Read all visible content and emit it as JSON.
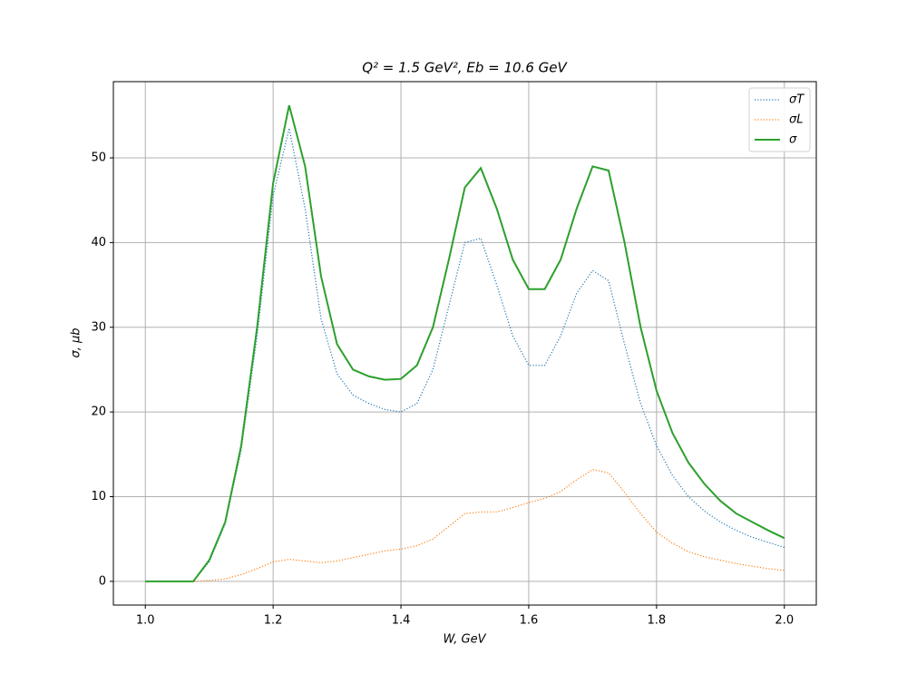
{
  "chart_data": {
    "type": "line",
    "title": "Q² = 1.5 GeV²,  Eb = 10.6 GeV",
    "x_label": "W, GeV",
    "y_label": "σ, μb",
    "x": [
      1.0,
      1.025,
      1.05,
      1.075,
      1.1,
      1.125,
      1.15,
      1.175,
      1.2,
      1.225,
      1.25,
      1.275,
      1.3,
      1.325,
      1.35,
      1.375,
      1.4,
      1.425,
      1.45,
      1.475,
      1.5,
      1.525,
      1.55,
      1.575,
      1.6,
      1.625,
      1.65,
      1.675,
      1.7,
      1.725,
      1.75,
      1.775,
      1.8,
      1.825,
      1.85,
      1.875,
      1.9,
      1.925,
      1.95,
      1.975,
      2.0
    ],
    "series": [
      {
        "name": "σT",
        "color": "#1f77b4",
        "linestyle": "dotted",
        "values": [
          0,
          0,
          0,
          0,
          2.3,
          6.8,
          15.5,
          29,
          45.5,
          53.5,
          44,
          31,
          24.5,
          22,
          21,
          20.3,
          20,
          21,
          25,
          32.5,
          40,
          40.5,
          35,
          29,
          25.5,
          25.5,
          29,
          34,
          36.7,
          35.5,
          28,
          21,
          16,
          12.5,
          10,
          8.3,
          7,
          6,
          5.2,
          4.6,
          4.0
        ]
      },
      {
        "name": "σL",
        "color": "#ff7f0e",
        "linestyle": "dotted",
        "values": [
          0,
          0,
          0,
          0,
          0.1,
          0.3,
          0.8,
          1.5,
          2.3,
          2.6,
          2.4,
          2.2,
          2.4,
          2.8,
          3.2,
          3.6,
          3.8,
          4.2,
          5,
          6.5,
          8,
          8.2,
          8.2,
          8.7,
          9.3,
          9.8,
          10.6,
          12,
          13.2,
          12.8,
          10.5,
          8,
          5.8,
          4.5,
          3.5,
          2.9,
          2.5,
          2.1,
          1.8,
          1.5,
          1.3
        ]
      },
      {
        "name": "σ",
        "color": "#2ca02c",
        "linestyle": "solid",
        "values": [
          0,
          0,
          0,
          0,
          2.5,
          7,
          16,
          30,
          47,
          56.2,
          49,
          36,
          28,
          25,
          24.2,
          23.8,
          23.9,
          25.5,
          30,
          38,
          46.5,
          48.8,
          44,
          38,
          34.5,
          34.5,
          38,
          44,
          49,
          48.5,
          40,
          30,
          22.5,
          17.5,
          14,
          11.5,
          9.5,
          8,
          7,
          6,
          5.1
        ]
      }
    ],
    "xlim": [
      0.95,
      2.05
    ],
    "ylim": [
      -2.8,
      59
    ],
    "xticks": [
      {
        "value": 1.0,
        "label": "1.0"
      },
      1.2,
      1.4,
      1.6,
      1.8,
      {
        "value": 2.0,
        "label": "2.0"
      }
    ],
    "yticks": [
      0,
      10,
      20,
      30,
      40,
      50
    ],
    "grid": true,
    "legend": "upper right"
  }
}
